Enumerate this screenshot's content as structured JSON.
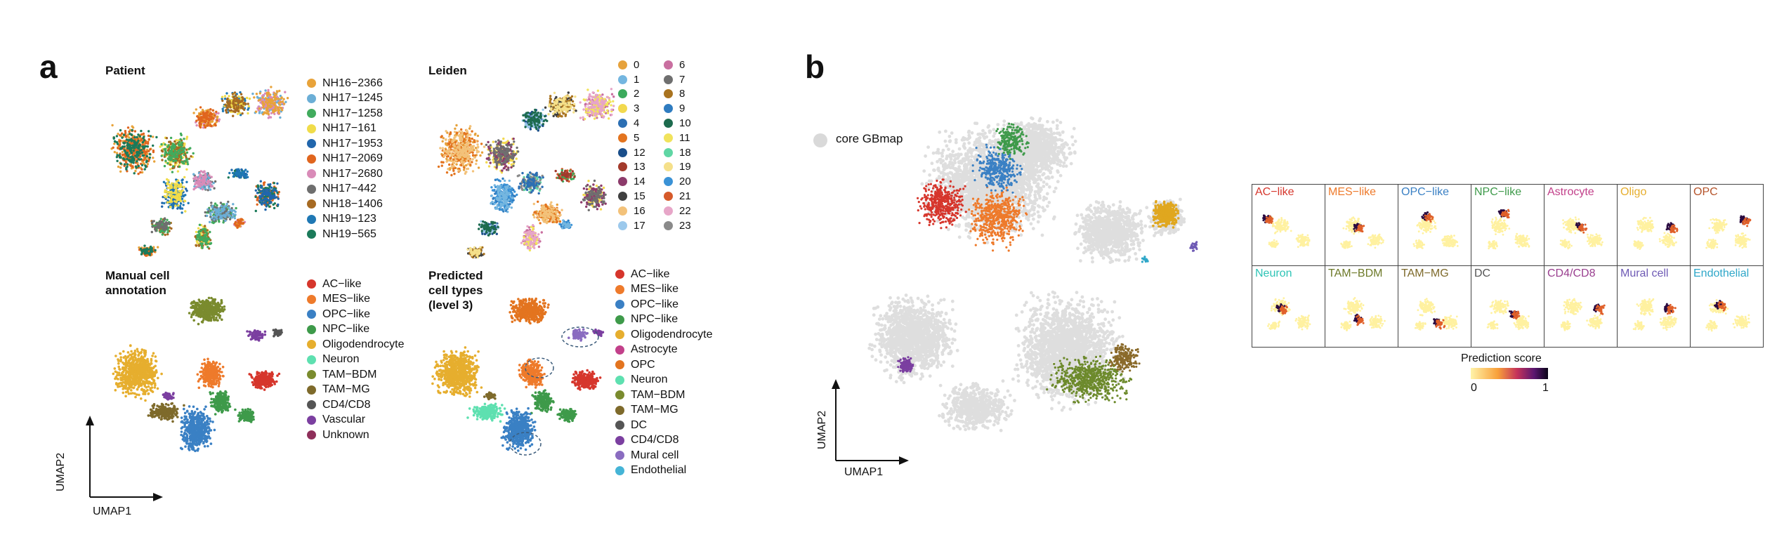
{
  "panel_a": {
    "letter": "a",
    "plots": {
      "patient": {
        "title": "Patient",
        "legend": [
          {
            "label": "NH16−2366",
            "color": "#E8A33A"
          },
          {
            "label": "NH17−1245",
            "color": "#6BAED6"
          },
          {
            "label": "NH17−1258",
            "color": "#41AB5D"
          },
          {
            "label": "NH17−161",
            "color": "#F0DC4A"
          },
          {
            "label": "NH17−1953",
            "color": "#2166AC"
          },
          {
            "label": "NH17−2069",
            "color": "#E0651E"
          },
          {
            "label": "NH17−2680",
            "color": "#D98BB8"
          },
          {
            "label": "NH17−442",
            "color": "#6E6E6E"
          },
          {
            "label": "NH18−1406",
            "color": "#A66A22"
          },
          {
            "label": "NH19−123",
            "color": "#1F78B4"
          },
          {
            "label": "NH19−565",
            "color": "#1B7A5A"
          }
        ]
      },
      "leiden": {
        "title": "Leiden",
        "legend_col1": [
          {
            "label": "0",
            "color": "#E6A23C"
          },
          {
            "label": "1",
            "color": "#74B6E0"
          },
          {
            "label": "2",
            "color": "#3BAA5C"
          },
          {
            "label": "3",
            "color": "#F2D94E"
          },
          {
            "label": "4",
            "color": "#2C6FB3"
          },
          {
            "label": "5",
            "color": "#E3741F"
          },
          {
            "label": "12",
            "color": "#1A4E8A"
          },
          {
            "label": "13",
            "color": "#A33A2B"
          },
          {
            "label": "14",
            "color": "#8C3B6B"
          },
          {
            "label": "15",
            "color": "#3F3F3F"
          },
          {
            "label": "16",
            "color": "#F3C27A"
          },
          {
            "label": "17",
            "color": "#9CC9EC"
          }
        ],
        "legend_col2": [
          {
            "label": "6",
            "color": "#C96FA0"
          },
          {
            "label": "7",
            "color": "#6F6F6F"
          },
          {
            "label": "8",
            "color": "#A9731F"
          },
          {
            "label": "9",
            "color": "#2F7CC0"
          },
          {
            "label": "10",
            "color": "#1D6B4E"
          },
          {
            "label": "11",
            "color": "#F1E35C"
          },
          {
            "label": "18",
            "color": "#5FD6A4"
          },
          {
            "label": "19",
            "color": "#F5E08A"
          },
          {
            "label": "20",
            "color": "#3A92D6"
          },
          {
            "label": "21",
            "color": "#D65A2A"
          },
          {
            "label": "22",
            "color": "#E7A6C8"
          },
          {
            "label": "23",
            "color": "#8A8A8A"
          }
        ]
      },
      "manual": {
        "title": "Manual cell\nannotation",
        "legend": [
          {
            "label": "AC−like",
            "color": "#D6362C"
          },
          {
            "label": "MES−like",
            "color": "#EE7A2B"
          },
          {
            "label": "OPC−like",
            "color": "#3A80C4"
          },
          {
            "label": "NPC−like",
            "color": "#3E9A4A"
          },
          {
            "label": "Oligodendrocyte",
            "color": "#E6AE2E"
          },
          {
            "label": "Neuron",
            "color": "#5EE0B0"
          },
          {
            "label": "TAM−BDM",
            "color": "#7A8B2E"
          },
          {
            "label": "TAM−MG",
            "color": "#7E6A2B"
          },
          {
            "label": "CD4/CD8",
            "color": "#555555"
          },
          {
            "label": "Vascular",
            "color": "#7B3FA0"
          },
          {
            "label": "Unknown",
            "color": "#8E2F5A"
          }
        ]
      },
      "predicted": {
        "title": "Predicted\ncell types\n(level 3)",
        "legend": [
          {
            "label": "AC−like",
            "color": "#D6362C"
          },
          {
            "label": "MES−like",
            "color": "#EE7A2B"
          },
          {
            "label": "OPC−like",
            "color": "#3A80C4"
          },
          {
            "label": "NPC−like",
            "color": "#3E9A4A"
          },
          {
            "label": "Oligodendrocyte",
            "color": "#E6AE2E"
          },
          {
            "label": "Astrocyte",
            "color": "#C2408A"
          },
          {
            "label": "OPC",
            "color": "#E3741F"
          },
          {
            "label": "Neuron",
            "color": "#5EE0B0"
          },
          {
            "label": "TAM−BDM",
            "color": "#7A8B2E"
          },
          {
            "label": "TAM−MG",
            "color": "#7E6A2B"
          },
          {
            "label": "DC",
            "color": "#555555"
          },
          {
            "label": "CD4/CD8",
            "color": "#7B3FA0"
          },
          {
            "label": "Mural cell",
            "color": "#8A6CC0"
          },
          {
            "label": "Endothelial",
            "color": "#45B4D6"
          }
        ]
      }
    },
    "axis": {
      "x": "UMAP1",
      "y": "UMAP2"
    }
  },
  "panel_b": {
    "letter": "b",
    "legend_label": "core GBmap",
    "legend_color": "#D9D9D9",
    "axis": {
      "x": "UMAP1",
      "y": "UMAP2"
    },
    "grid_cells": [
      {
        "label": "AC−like",
        "color": "#D6362C"
      },
      {
        "label": "MES−like",
        "color": "#EE7A2B"
      },
      {
        "label": "OPC−like",
        "color": "#3A80C4"
      },
      {
        "label": "NPC−like",
        "color": "#3E9A4A"
      },
      {
        "label": "Astrocyte",
        "color": "#C2408A"
      },
      {
        "label": "Oligo",
        "color": "#E6AE2E"
      },
      {
        "label": "OPC",
        "color": "#B5532A"
      },
      {
        "label": "Neuron",
        "color": "#2EC4B6"
      },
      {
        "label": "TAM−BDM",
        "color": "#6E7A2A"
      },
      {
        "label": "TAM−MG",
        "color": "#7E6A2B"
      },
      {
        "label": "DC",
        "color": "#555555"
      },
      {
        "label": "CD4/CD8",
        "color": "#9A3F8F"
      },
      {
        "label": "Mural cell",
        "color": "#6F5BB5"
      },
      {
        "label": "Endothelial",
        "color": "#2FA7C9"
      }
    ],
    "colorbar": {
      "title": "Prediction score",
      "min_label": "0",
      "max_label": "1"
    }
  }
}
